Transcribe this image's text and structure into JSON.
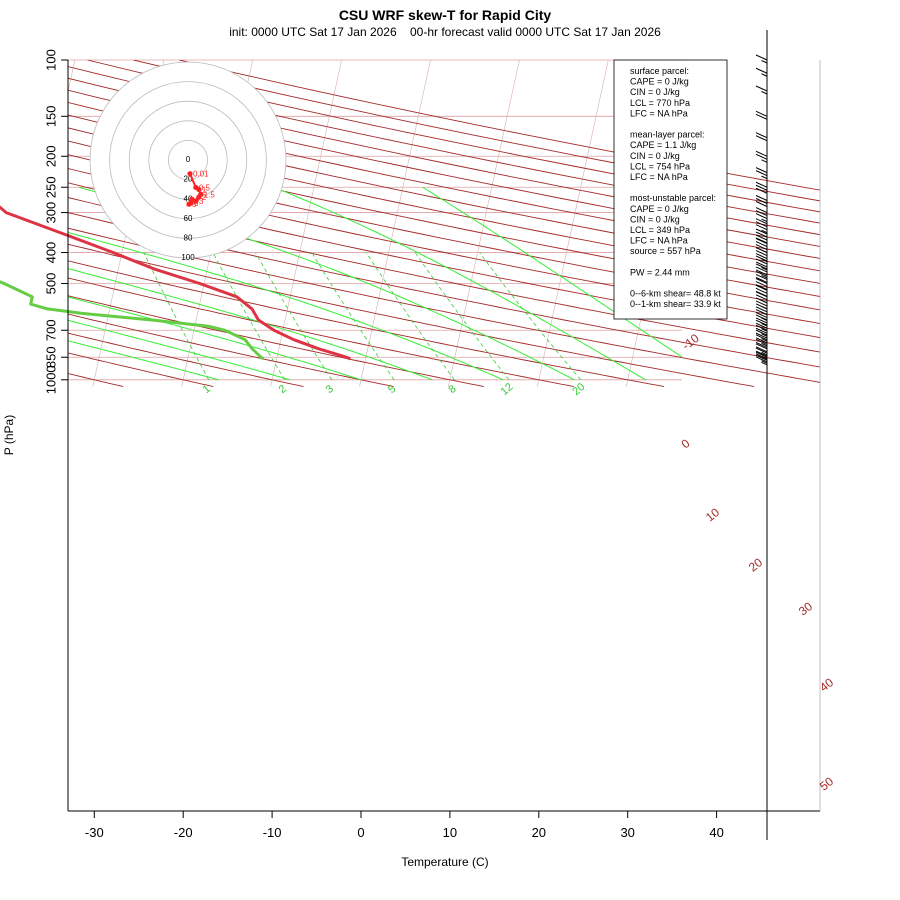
{
  "header": {
    "title": "CSU WRF skew-T for Rapid City",
    "subtitle": "init: 0000 UTC Sat 17 Jan 2026    00-hr forecast valid 0000 UTC Sat 17 Jan 2026"
  },
  "axes": {
    "xlabel": "Temperature (C)",
    "ylabel": "P (hPa)"
  },
  "stats": {
    "lines": [
      "surface parcel:",
      "CAPE = 0 J/kg",
      "CIN = 0 J/kg",
      "LCL = 770 hPa",
      "LFC = NA hPa",
      "",
      "mean-layer parcel:",
      "CAPE = 1.1 J/kg",
      "CIN = 0 J/kg",
      "LCL = 754 hPa",
      "LFC = NA hPa",
      "",
      "most-unstable parcel:",
      "CAPE = 0 J/kg",
      "CIN = 0 J/kg",
      "LCL = 349 hPa",
      "LFC = NA hPa",
      "source = 557 hPa",
      "",
      "PW =  2.44 mm",
      "",
      "0--6-km shear= 48.8 kt",
      "0--1-km shear= 33.9 kt"
    ]
  },
  "colors": {
    "temperature": "#dd3344",
    "dewpoint": "#66cc44",
    "isotherm": "#a52a2a",
    "dry_adiabat": "#a52a2a",
    "moist_adiabat": "#33ee33",
    "mixing_ratio": "#33cc33",
    "isobar": "#e0a0a0",
    "hodograph": "#ff2222"
  },
  "chart_data": {
    "type": "skew-t",
    "title": "CSU WRF skew-T for Rapid City",
    "xlabel": "Temperature (C)",
    "ylabel": "P (hPa)",
    "pressure_levels": [
      100,
      150,
      200,
      250,
      300,
      400,
      500,
      700,
      850,
      1000
    ],
    "temperature_ticks": [
      -30,
      -20,
      -10,
      0,
      10,
      20,
      30,
      40
    ],
    "xlim": [
      -33,
      45
    ],
    "ylim": [
      1050,
      100
    ],
    "isotherm_labels": [
      -10,
      0,
      10,
      20,
      30,
      40,
      50
    ],
    "mixing_ratio_labels": [
      1,
      2,
      3,
      5,
      8,
      12,
      20
    ],
    "temperature_profile": [
      {
        "p": 860,
        "t": -1.7
      },
      {
        "p": 850,
        "t": -2.2
      },
      {
        "p": 800,
        "t": -5.5
      },
      {
        "p": 750,
        "t": -8.5
      },
      {
        "p": 700,
        "t": -11.0
      },
      {
        "p": 650,
        "t": -13.0
      },
      {
        "p": 600,
        "t": -14.0
      },
      {
        "p": 550,
        "t": -16.0
      },
      {
        "p": 500,
        "t": -20.5
      },
      {
        "p": 450,
        "t": -26.0
      },
      {
        "p": 400,
        "t": -31.0
      },
      {
        "p": 350,
        "t": -37.0
      },
      {
        "p": 300,
        "t": -44.0
      },
      {
        "p": 280,
        "t": -45.5
      },
      {
        "p": 250,
        "t": -47.0
      },
      {
        "p": 200,
        "t": -52.0
      },
      {
        "p": 175,
        "t": -53.0
      },
      {
        "p": 150,
        "t": -55.5
      },
      {
        "p": 125,
        "t": -58.0
      },
      {
        "p": 110,
        "t": -59.0
      }
    ],
    "dewpoint_profile": [
      {
        "p": 860,
        "t": -11.5
      },
      {
        "p": 850,
        "t": -11.8
      },
      {
        "p": 800,
        "t": -13.0
      },
      {
        "p": 750,
        "t": -14.0
      },
      {
        "p": 700,
        "t": -16.5
      },
      {
        "p": 680,
        "t": -18.5
      },
      {
        "p": 650,
        "t": -25.0
      },
      {
        "p": 620,
        "t": -33.0
      },
      {
        "p": 600,
        "t": -37.0
      },
      {
        "p": 580,
        "t": -39.0
      },
      {
        "p": 550,
        "t": -39.0
      },
      {
        "p": 500,
        "t": -42.5
      },
      {
        "p": 450,
        "t": -47.0
      },
      {
        "p": 400,
        "t": -55.0
      },
      {
        "p": 350,
        "t": -58.0
      },
      {
        "p": 300,
        "t": -63.0
      },
      {
        "p": 250,
        "t": -66.0
      },
      {
        "p": 200,
        "t": -69.0
      },
      {
        "p": 175,
        "t": -70.0
      }
    ],
    "hodograph": {
      "rings": [
        20,
        40,
        60,
        80,
        100
      ],
      "ring_labels": [
        "0",
        "20",
        "40",
        "60",
        "80",
        "100"
      ],
      "points": [
        {
          "u": 2,
          "v": 14,
          "label": "0.01"
        },
        {
          "u": 8,
          "v": 28,
          "label": "0.5"
        },
        {
          "u": 11,
          "v": 30,
          "label": "1"
        },
        {
          "u": 13,
          "v": 35,
          "label": "1.5"
        },
        {
          "u": 11,
          "v": 38,
          "label": "2"
        },
        {
          "u": 8,
          "v": 42,
          "label": "3"
        },
        {
          "u": 4,
          "v": 40,
          "label": "4"
        },
        {
          "u": 1,
          "v": 45,
          "label": "5"
        },
        {
          "u": 3,
          "v": 44,
          "label": "6"
        }
      ]
    },
    "wind_barbs": [
      {
        "p": 860,
        "speed_kt": 25
      },
      {
        "p": 850,
        "speed_kt": 25
      },
      {
        "p": 825,
        "speed_kt": 25
      },
      {
        "p": 800,
        "speed_kt": 25
      },
      {
        "p": 775,
        "speed_kt": 20
      },
      {
        "p": 750,
        "speed_kt": 25
      },
      {
        "p": 725,
        "speed_kt": 25
      },
      {
        "p": 700,
        "speed_kt": 25
      },
      {
        "p": 675,
        "speed_kt": 25
      },
      {
        "p": 650,
        "speed_kt": 25
      },
      {
        "p": 625,
        "speed_kt": 25
      },
      {
        "p": 600,
        "speed_kt": 25
      },
      {
        "p": 575,
        "speed_kt": 25
      },
      {
        "p": 550,
        "speed_kt": 25
      },
      {
        "p": 525,
        "speed_kt": 30
      },
      {
        "p": 500,
        "speed_kt": 30
      },
      {
        "p": 475,
        "speed_kt": 30
      },
      {
        "p": 450,
        "speed_kt": 35
      },
      {
        "p": 425,
        "speed_kt": 35
      },
      {
        "p": 400,
        "speed_kt": 35
      },
      {
        "p": 375,
        "speed_kt": 40
      },
      {
        "p": 350,
        "speed_kt": 40
      },
      {
        "p": 325,
        "speed_kt": 35
      },
      {
        "p": 300,
        "speed_kt": 35
      },
      {
        "p": 275,
        "speed_kt": 30
      },
      {
        "p": 250,
        "speed_kt": 30
      },
      {
        "p": 225,
        "speed_kt": 25
      },
      {
        "p": 200,
        "speed_kt": 25
      },
      {
        "p": 175,
        "speed_kt": 20
      },
      {
        "p": 150,
        "speed_kt": 20
      },
      {
        "p": 125,
        "speed_kt": 15
      },
      {
        "p": 110,
        "speed_kt": 15
      },
      {
        "p": 100,
        "speed_kt": 15
      }
    ]
  }
}
